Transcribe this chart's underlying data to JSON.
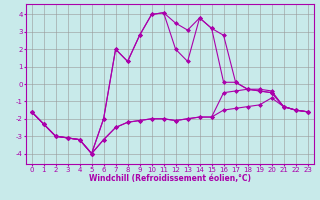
{
  "title": "",
  "xlabel": "Windchill (Refroidissement éolien,°C)",
  "bg_color": "#c8eaea",
  "line_color": "#aa00aa",
  "xlim": [
    -0.5,
    23.5
  ],
  "ylim": [
    -4.6,
    4.6
  ],
  "xticks": [
    0,
    1,
    2,
    3,
    4,
    5,
    6,
    7,
    8,
    9,
    10,
    11,
    12,
    13,
    14,
    15,
    16,
    17,
    18,
    19,
    20,
    21,
    22,
    23
  ],
  "yticks": [
    -4,
    -3,
    -2,
    -1,
    0,
    1,
    2,
    3,
    4
  ],
  "series": [
    [
      -1.6,
      -2.3,
      -3.0,
      -3.1,
      -3.2,
      -4.0,
      -3.2,
      -2.5,
      -2.2,
      -2.1,
      -2.0,
      -2.0,
      -2.1,
      -2.0,
      -1.9,
      -1.9,
      -1.5,
      -1.4,
      -1.3,
      -1.2,
      -0.8,
      -1.3,
      -1.5,
      -1.6
    ],
    [
      -1.6,
      -2.3,
      -3.0,
      -3.1,
      -3.2,
      -4.0,
      -3.2,
      -2.5,
      -2.2,
      -2.1,
      -2.0,
      -2.0,
      -2.1,
      -2.0,
      -1.9,
      -1.9,
      -0.5,
      -0.4,
      -0.3,
      -0.3,
      -0.4,
      -1.3,
      -1.5,
      -1.6
    ],
    [
      -1.6,
      -2.3,
      -3.0,
      -3.1,
      -3.2,
      -4.0,
      -2.0,
      2.0,
      1.3,
      2.8,
      4.0,
      4.1,
      3.5,
      3.1,
      3.8,
      3.2,
      2.8,
      0.1,
      -0.3,
      -0.4,
      -0.5,
      -1.3,
      -1.5,
      -1.6
    ],
    [
      -1.6,
      -2.3,
      -3.0,
      -3.1,
      -3.2,
      -4.0,
      -2.0,
      2.0,
      1.3,
      2.8,
      4.0,
      4.1,
      2.0,
      1.3,
      3.8,
      3.2,
      0.1,
      0.1,
      -0.3,
      -0.4,
      -0.5,
      -1.3,
      -1.5,
      -1.6
    ]
  ],
  "grid_color": "#999999",
  "marker": "D",
  "markersize": 2,
  "linewidth": 0.8,
  "label_fontsize": 5.5,
  "tick_fontsize": 5
}
